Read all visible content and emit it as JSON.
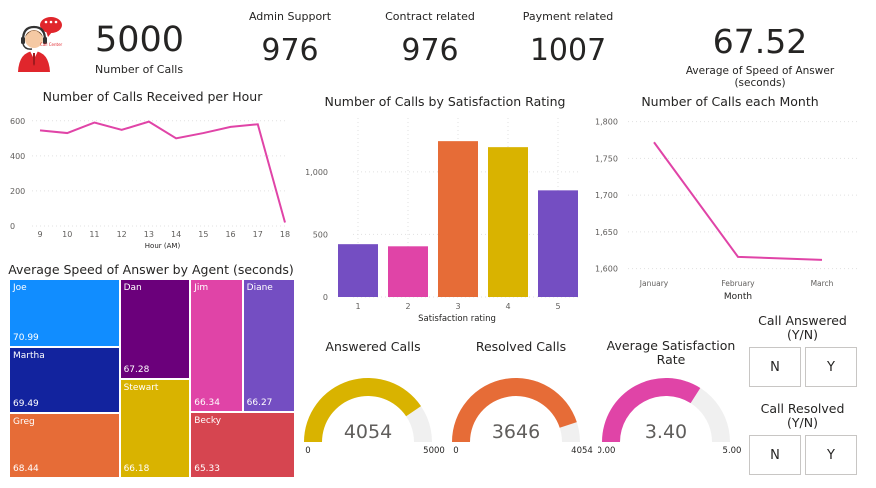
{
  "logo": {
    "badge_text": "Call Center"
  },
  "kpis": {
    "total_calls": {
      "value": "5000",
      "label": "Number of Calls"
    },
    "admin_support": {
      "label": "Admin Support",
      "value": "976"
    },
    "contract_related": {
      "label": "Contract related",
      "value": "976"
    },
    "payment_related": {
      "label": "Payment related",
      "value": "1007"
    },
    "avg_speed": {
      "value": "67.52",
      "label": "Average of Speed of Answer (seconds)"
    }
  },
  "charts": {
    "calls_per_hour": {
      "title": "Number of Calls Received per Hour"
    },
    "calls_by_satisfaction": {
      "title": "Number of Calls by Satisfaction Rating"
    },
    "calls_per_month": {
      "title": "Number of Calls each Month"
    },
    "treemap": {
      "title": "Average Speed of Answer by Agent (seconds)"
    }
  },
  "chart_data": [
    {
      "type": "line",
      "title": "Number of Calls Received per Hour",
      "xlabel": "Hour (AM)",
      "ylabel": "",
      "x": [
        9,
        10,
        11,
        12,
        13,
        14,
        15,
        16,
        17,
        18
      ],
      "x_ticks": [
        "9",
        "10",
        "11",
        "12",
        "13",
        "14",
        "15",
        "16",
        "17",
        "18"
      ],
      "values": [
        545,
        530,
        590,
        548,
        595,
        500,
        530,
        565,
        580,
        20
      ],
      "ylim": [
        0,
        650
      ],
      "y_ticks": [
        "0",
        "200",
        "400",
        "600"
      ],
      "grid": true,
      "color": "#E044A7"
    },
    {
      "type": "bar",
      "title": "Number of Calls by Satisfaction Rating",
      "xlabel": "Satisfaction rating",
      "ylabel": "",
      "categories": [
        "1",
        "2",
        "3",
        "4",
        "5"
      ],
      "values": [
        422,
        405,
        1245,
        1197,
        852
      ],
      "colors": [
        "#744EC2",
        "#E044A7",
        "#E66C37",
        "#D9B300",
        "#744EC2"
      ],
      "ylim": [
        0,
        1350
      ],
      "y_ticks": [
        "0",
        "500",
        "1,000"
      ],
      "grid": true
    },
    {
      "type": "line",
      "title": "Number of Calls each Month",
      "xlabel": "Month",
      "ylabel": "",
      "categories": [
        "January",
        "February",
        "March"
      ],
      "values": [
        1772,
        1616,
        1612
      ],
      "ylim": [
        1590,
        1805
      ],
      "y_ticks": [
        "1,600",
        "1,650",
        "1,700",
        "1,750",
        "1,800"
      ],
      "grid": true,
      "color": "#E044A7"
    },
    {
      "type": "treemap",
      "title": "Average Speed of Answer by Agent (seconds)",
      "categories": [
        "Joe",
        "Martha",
        "Greg",
        "Dan",
        "Stewart",
        "Jim",
        "Diane",
        "Becky"
      ],
      "values": [
        70.99,
        69.49,
        68.44,
        67.28,
        66.18,
        66.34,
        66.27,
        65.33
      ],
      "value_labels": [
        "70.99",
        "69.49",
        "68.44",
        "67.28",
        "66.18",
        "66.34",
        "66.27",
        "65.33"
      ],
      "colors": [
        "#118DFF",
        "#12239E",
        "#E66C37",
        "#6B007B",
        "#D9B300",
        "#E044A7",
        "#744EC2",
        "#D64550"
      ]
    },
    {
      "type": "gauge",
      "title": "Answered Calls",
      "value": 4054,
      "min": 0,
      "max": 5000,
      "value_label": "4054",
      "min_label": "0",
      "max_label": "5000",
      "color": "#D9B300"
    },
    {
      "type": "gauge",
      "title": "Resolved Calls",
      "value": 3646,
      "min": 0,
      "max": 4054,
      "value_label": "3646",
      "min_label": "0",
      "max_label": "4054",
      "color": "#E66C37"
    },
    {
      "type": "gauge",
      "title": "Average Satisfaction Rate",
      "value": 3.4,
      "min": 0,
      "max": 5,
      "value_label": "3.40",
      "min_label": "0.00",
      "max_label": "5.00",
      "color": "#E044A7"
    }
  ],
  "gauges": {
    "answered": {
      "title": "Answered Calls"
    },
    "resolved": {
      "title": "Resolved Calls"
    },
    "satisfaction": {
      "title": "Average Satisfaction Rate"
    }
  },
  "slicers": {
    "call_answered": {
      "title": "Call Answered (Y/N)",
      "options": [
        "N",
        "Y"
      ]
    },
    "call_resolved": {
      "title": "Call Resolved (Y/N)",
      "options": [
        "N",
        "Y"
      ]
    }
  },
  "colors": {
    "gauge_track": "#F0F0F0",
    "axis_text": "#605E5C",
    "grid": "#E1E1E1"
  }
}
